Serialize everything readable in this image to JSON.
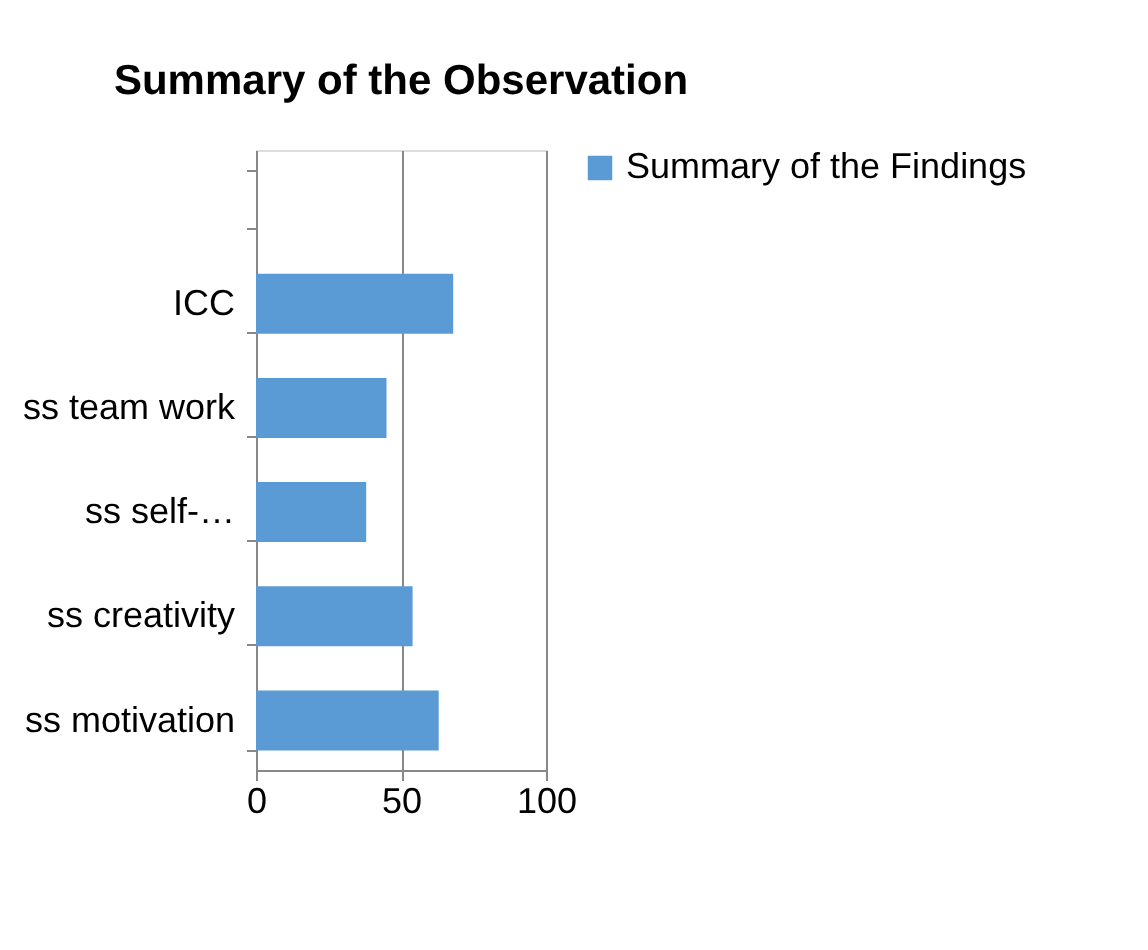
{
  "chart_data": {
    "type": "bar",
    "orientation": "horizontal",
    "title": "Summary of the Observation",
    "categories": [
      null,
      "ICC",
      "ss team work",
      "ss self-…",
      "ss creativity",
      "ss motivation"
    ],
    "series": [
      {
        "name": "Summary of the Findings",
        "color": "#5b9bd5",
        "values": [
          null,
          68,
          45,
          38,
          54,
          63
        ]
      }
    ],
    "xlim": [
      0,
      100
    ],
    "xticks": [
      0,
      50,
      100
    ],
    "grid": "x",
    "legend": "right"
  }
}
